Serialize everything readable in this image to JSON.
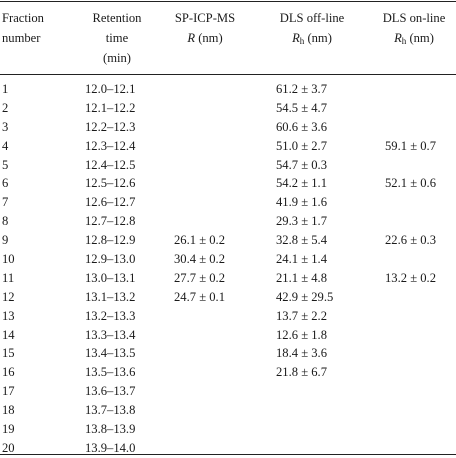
{
  "headers": {
    "fraction": [
      "Fraction",
      "number"
    ],
    "retention": [
      "Retention",
      "time",
      "(min)"
    ],
    "spicpms": {
      "line1": "SP-ICP-MS",
      "sym": "R",
      "unit": "(nm)"
    },
    "dls_offline": {
      "line1": "DLS off-line",
      "sym": "R",
      "sub": "h",
      "unit": "(nm)"
    },
    "dls_online": {
      "line1": "DLS on-line",
      "sym": "R",
      "sub": "h",
      "unit": "(nm)"
    }
  },
  "rows": [
    {
      "fraction": "1",
      "retention": "12.0–12.1",
      "sp": "",
      "dls_off": "61.2 ± 3.7",
      "dls_on": ""
    },
    {
      "fraction": "2",
      "retention": "12.1–12.2",
      "sp": "",
      "dls_off": "54.5 ± 4.7",
      "dls_on": ""
    },
    {
      "fraction": "3",
      "retention": "12.2–12.3",
      "sp": "",
      "dls_off": "60.6 ± 3.6",
      "dls_on": ""
    },
    {
      "fraction": "4",
      "retention": "12.3–12.4",
      "sp": "",
      "dls_off": "51.0 ± 2.7",
      "dls_on": "59.1 ± 0.7"
    },
    {
      "fraction": "5",
      "retention": "12.4–12.5",
      "sp": "",
      "dls_off": "54.7 ± 0.3",
      "dls_on": ""
    },
    {
      "fraction": "6",
      "retention": "12.5–12.6",
      "sp": "",
      "dls_off": "54.2 ± 1.1",
      "dls_on": "52.1 ± 0.6"
    },
    {
      "fraction": "7",
      "retention": "12.6–12.7",
      "sp": "",
      "dls_off": "41.9 ± 1.6",
      "dls_on": ""
    },
    {
      "fraction": "8",
      "retention": "12.7–12.8",
      "sp": "",
      "dls_off": "29.3 ± 1.7",
      "dls_on": ""
    },
    {
      "fraction": "9",
      "retention": "12.8–12.9",
      "sp": "26.1 ± 0.2",
      "dls_off": "32.8 ± 5.4",
      "dls_on": "22.6 ± 0.3"
    },
    {
      "fraction": "10",
      "retention": "12.9–13.0",
      "sp": "30.4 ± 0.2",
      "dls_off": "24.1 ± 1.4",
      "dls_on": ""
    },
    {
      "fraction": "11",
      "retention": "13.0–13.1",
      "sp": "27.7 ± 0.2",
      "dls_off": "21.1 ± 4.8",
      "dls_on": "13.2 ± 0.2"
    },
    {
      "fraction": "12",
      "retention": "13.1–13.2",
      "sp": "24.7 ± 0.1",
      "dls_off": "42.9 ± 29.5",
      "dls_on": ""
    },
    {
      "fraction": "13",
      "retention": "13.2–13.3",
      "sp": "",
      "dls_off": "13.7 ± 2.2",
      "dls_on": ""
    },
    {
      "fraction": "14",
      "retention": "13.3–13.4",
      "sp": "",
      "dls_off": "12.6 ± 1.8",
      "dls_on": ""
    },
    {
      "fraction": "15",
      "retention": "13.4–13.5",
      "sp": "",
      "dls_off": "18.4 ± 3.6",
      "dls_on": ""
    },
    {
      "fraction": "16",
      "retention": "13.5–13.6",
      "sp": "",
      "dls_off": "21.8 ± 6.7",
      "dls_on": ""
    },
    {
      "fraction": "17",
      "retention": "13.6–13.7",
      "sp": "",
      "dls_off": "",
      "dls_on": ""
    },
    {
      "fraction": "18",
      "retention": "13.7–13.8",
      "sp": "",
      "dls_off": "",
      "dls_on": ""
    },
    {
      "fraction": "19",
      "retention": "13.8–13.9",
      "sp": "",
      "dls_off": "",
      "dls_on": ""
    },
    {
      "fraction": "20",
      "retention": "13.9–14.0",
      "sp": "",
      "dls_off": "",
      "dls_on": ""
    }
  ]
}
